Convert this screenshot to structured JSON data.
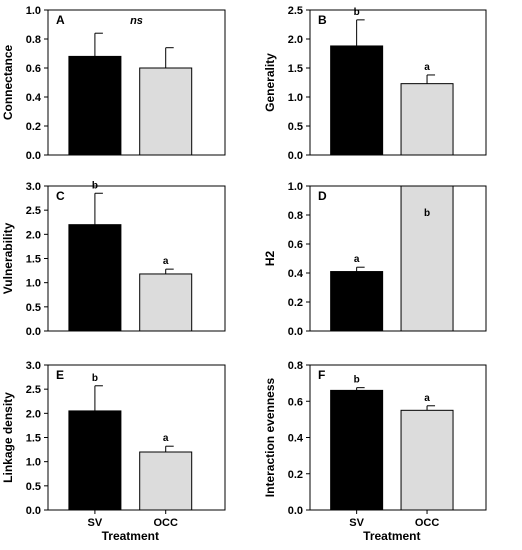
{
  "colors": {
    "bar_sv": "#000000",
    "bar_occ": "#dcdcdc",
    "axis": "#000000"
  },
  "chart_data": [
    {
      "type": "bar",
      "panel": "A",
      "ylabel": "Connectance",
      "xlabel": "",
      "categories": [
        "SV",
        "OCC"
      ],
      "show_categories": false,
      "values": [
        0.68,
        0.6
      ],
      "errors": [
        0.16,
        0.14
      ],
      "ylim": [
        0,
        1.0
      ],
      "yticks": [
        "0.0",
        "0.2",
        "0.4",
        "0.6",
        "0.8",
        "1.0"
      ],
      "annotation": "ns",
      "letters": [
        "",
        ""
      ]
    },
    {
      "type": "bar",
      "panel": "B",
      "ylabel": "Generality",
      "xlabel": "",
      "categories": [
        "SV",
        "OCC"
      ],
      "show_categories": false,
      "values": [
        1.88,
        1.23
      ],
      "errors": [
        0.45,
        0.15
      ],
      "ylim": [
        0,
        2.5
      ],
      "yticks": [
        "0.0",
        "0.5",
        "1.0",
        "1.5",
        "2.0",
        "2.5"
      ],
      "annotation": "",
      "letters": [
        "b",
        "a"
      ]
    },
    {
      "type": "bar",
      "panel": "C",
      "ylabel": "Vulnerability",
      "xlabel": "",
      "categories": [
        "SV",
        "OCC"
      ],
      "show_categories": false,
      "values": [
        2.2,
        1.18
      ],
      "errors": [
        0.65,
        0.1
      ],
      "ylim": [
        0,
        3.0
      ],
      "yticks": [
        "0.0",
        "0.5",
        "1.0",
        "1.5",
        "2.0",
        "2.5",
        "3.0"
      ],
      "annotation": "",
      "letters": [
        "b",
        "a"
      ]
    },
    {
      "type": "bar",
      "panel": "D",
      "ylabel": "H2",
      "xlabel": "",
      "categories": [
        "SV",
        "OCC"
      ],
      "show_categories": false,
      "values": [
        0.41,
        1.0
      ],
      "errors": [
        0.03,
        0.0
      ],
      "ylim": [
        0,
        1.0
      ],
      "yticks": [
        "0.0",
        "0.2",
        "0.4",
        "0.6",
        "0.8",
        "1.0"
      ],
      "annotation": "",
      "letters": [
        "a",
        "b"
      ],
      "letter_inside": [
        false,
        true
      ]
    },
    {
      "type": "bar",
      "panel": "E",
      "ylabel": "Linkage density",
      "xlabel": "Treatment",
      "categories": [
        "SV",
        "OCC"
      ],
      "show_categories": true,
      "values": [
        2.05,
        1.2
      ],
      "errors": [
        0.52,
        0.12
      ],
      "ylim": [
        0,
        3.0
      ],
      "yticks": [
        "0.0",
        "0.5",
        "1.0",
        "1.5",
        "2.0",
        "2.5",
        "3.0"
      ],
      "annotation": "",
      "letters": [
        "b",
        "a"
      ]
    },
    {
      "type": "bar",
      "panel": "F",
      "ylabel": "Interaction evenness",
      "xlabel": "Treatment",
      "categories": [
        "SV",
        "OCC"
      ],
      "show_categories": true,
      "values": [
        0.66,
        0.55
      ],
      "errors": [
        0.015,
        0.025
      ],
      "ylim": [
        0,
        0.8
      ],
      "yticks": [
        "0.0",
        "0.2",
        "0.4",
        "0.6",
        "0.8"
      ],
      "annotation": "",
      "letters": [
        "b",
        "a"
      ]
    }
  ]
}
